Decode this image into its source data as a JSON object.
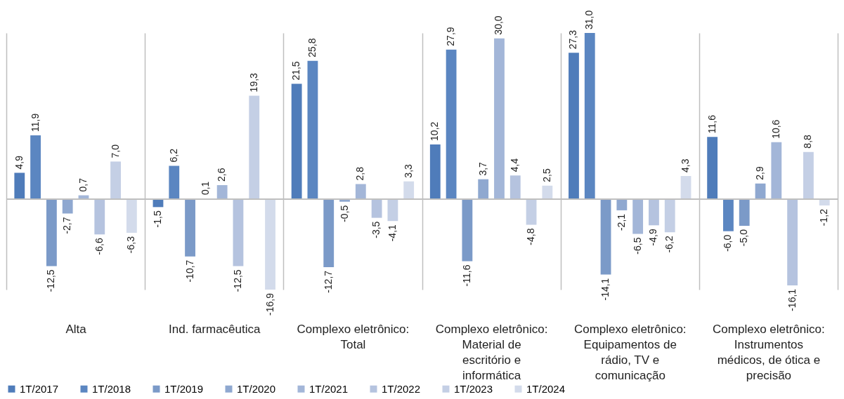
{
  "chart_data": {
    "type": "bar",
    "categories": [
      "Alta",
      "Ind. farmacêutica",
      "Complexo eletrônico: Total",
      "Complexo eletrônico: Material de escritório e informática",
      "Complexo eletrônico: Equipamentos de rádio, TV e comunicação",
      "Complexo eletrônico: Instrumentos médicos, de ótica e precisão"
    ],
    "series": [
      {
        "name": "1T/2017",
        "color": "#4f7cba",
        "values": [
          4.9,
          -1.5,
          21.5,
          10.2,
          27.3,
          11.6
        ],
        "value_labels": [
          "4,9",
          "-1,5",
          "21,5",
          "10,2",
          "27,3",
          "11,6"
        ]
      },
      {
        "name": "1T/2018",
        "color": "#5b86c1",
        "values": [
          11.9,
          6.2,
          25.8,
          27.9,
          31.0,
          -6.0
        ],
        "value_labels": [
          "11,9",
          "6,2",
          "25,8",
          "27,9",
          "31,0",
          "-6,0"
        ]
      },
      {
        "name": "1T/2019",
        "color": "#7b9ac8",
        "values": [
          -12.5,
          -10.7,
          -12.7,
          -11.6,
          -14.1,
          -5.0
        ],
        "value_labels": [
          "-12,5",
          "-10,7",
          "-12,7",
          "-11,6",
          "-14,1",
          "-5,0"
        ]
      },
      {
        "name": "1T/2020",
        "color": "#8fa8d0",
        "values": [
          -2.7,
          0.1,
          -0.5,
          3.7,
          -2.1,
          2.9
        ],
        "value_labels": [
          "-2,7",
          "0,1",
          "-0,5",
          "3,7",
          "-2,1",
          "2,9"
        ]
      },
      {
        "name": "1T/2021",
        "color": "#a3b6d8",
        "values": [
          0.7,
          2.6,
          2.8,
          30.0,
          -6.5,
          10.6
        ],
        "value_labels": [
          "0,7",
          "2,6",
          "2,8",
          "30,0",
          "-6,5",
          "10,6"
        ]
      },
      {
        "name": "1T/2022",
        "color": "#b5c3df",
        "values": [
          -6.6,
          -12.5,
          -3.5,
          4.4,
          -4.9,
          -16.1
        ],
        "value_labels": [
          "-6,6",
          "-12,5",
          "-3,5",
          "4,4",
          "-4,9",
          "-16,1"
        ]
      },
      {
        "name": "1T/2023",
        "color": "#c4cfe5",
        "values": [
          7.0,
          19.3,
          -4.1,
          -4.8,
          -6.2,
          8.8
        ],
        "value_labels": [
          "7,0",
          "19,3",
          "-4,1",
          "-4,8",
          "-6,2",
          "8,8"
        ]
      },
      {
        "name": "1T/2024",
        "color": "#d3dbeb",
        "values": [
          -6.3,
          -16.9,
          3.3,
          2.5,
          4.3,
          -1.2
        ],
        "value_labels": [
          "-6,3",
          "-16,9",
          "3,3",
          "2,5",
          "4,3",
          "-1,2"
        ]
      }
    ],
    "grid": "x",
    "legend": "bottom"
  }
}
